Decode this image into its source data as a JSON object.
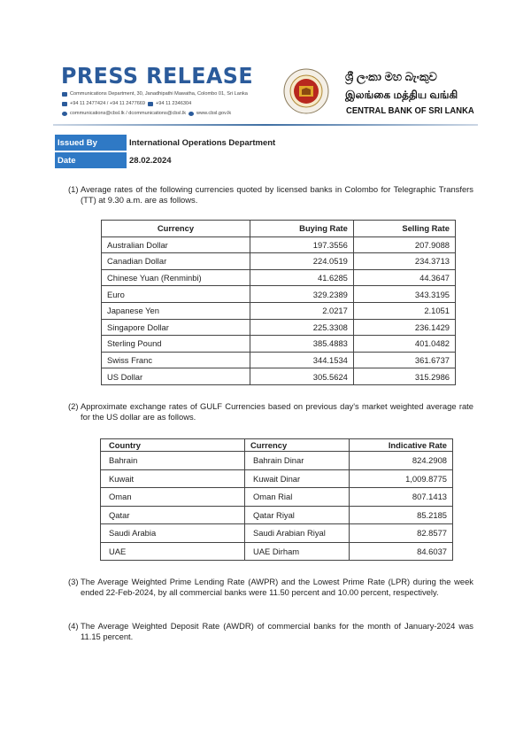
{
  "header": {
    "title": "PRESS RELEASE",
    "address": "Communications Department, 30, Janadhipathi Mawatha, Colombo 01, Sri Lanka",
    "phones": "+94 11 2477424 / +94 11 2477669",
    "fax": "+94 11  2346304",
    "emails": "communications@cbsl.lk / dcommunications@cbsl.lk",
    "website": "www.cbsl.gov.lk",
    "bank_name_sinhala": "ශ්‍රී ලංකා මහ බැංකුව",
    "bank_name_tamil": "இலங்கை மத்திய வங்கி",
    "bank_name_english": "CENTRAL BANK OF SRI LANKA",
    "brand_color": "#2b5b9b"
  },
  "meta": {
    "issued_by_label": "Issued By",
    "issued_by": "International Operations Department",
    "date_label": "Date",
    "date": "28.02.2024",
    "label_color": "#2f79c5"
  },
  "section1": {
    "number": "(1)",
    "text": "Average rates of the following currencies quoted by licensed banks in Colombo for Telegraphic Transfers (TT) at 9.30 a.m. are as follows.",
    "columns": [
      "Currency",
      "Buying Rate",
      "Selling Rate"
    ],
    "rows": [
      [
        "Australian Dollar",
        "197.3556",
        "207.9088"
      ],
      [
        "Canadian Dollar",
        "224.0519",
        "234.3713"
      ],
      [
        "Chinese Yuan (Renminbi)",
        "41.6285",
        "44.3647"
      ],
      [
        "Euro",
        "329.2389",
        "343.3195"
      ],
      [
        "Japanese Yen",
        "2.0217",
        "2.1051"
      ],
      [
        "Singapore Dollar",
        "225.3308",
        "236.1429"
      ],
      [
        "Sterling Pound",
        "385.4883",
        "401.0482"
      ],
      [
        "Swiss Franc",
        "344.1534",
        "361.6737"
      ],
      [
        "US Dollar",
        "305.5624",
        "315.2986"
      ]
    ]
  },
  "section2": {
    "number": "(2)",
    "text": "Approximate exchange rates of GULF Currencies based on previous day's market weighted average rate for the US dollar are as follows.",
    "columns": [
      "Country",
      "Currency",
      "Indicative Rate"
    ],
    "rows": [
      [
        "Bahrain",
        "Bahrain Dinar",
        "824.2908"
      ],
      [
        "Kuwait",
        "Kuwait Dinar",
        "1,009.8775"
      ],
      [
        "Oman",
        "Oman Rial",
        "807.1413"
      ],
      [
        "Qatar",
        "Qatar Riyal",
        "85.2185"
      ],
      [
        "Saudi Arabia",
        "Saudi Arabian Riyal",
        "82.8577"
      ],
      [
        "UAE",
        "UAE Dirham",
        "84.6037"
      ]
    ]
  },
  "section3": {
    "number": "(3)",
    "text": "The Average Weighted Prime Lending Rate (AWPR) and the Lowest Prime Rate (LPR) during the week ended 22-Feb-2024, by all commercial banks were 11.50 percent and 10.00 percent, respectively."
  },
  "section4": {
    "number": "(4)",
    "text": "The Average Weighted Deposit Rate (AWDR) of commercial banks for the month of January-2024 was 11.15 percent."
  }
}
